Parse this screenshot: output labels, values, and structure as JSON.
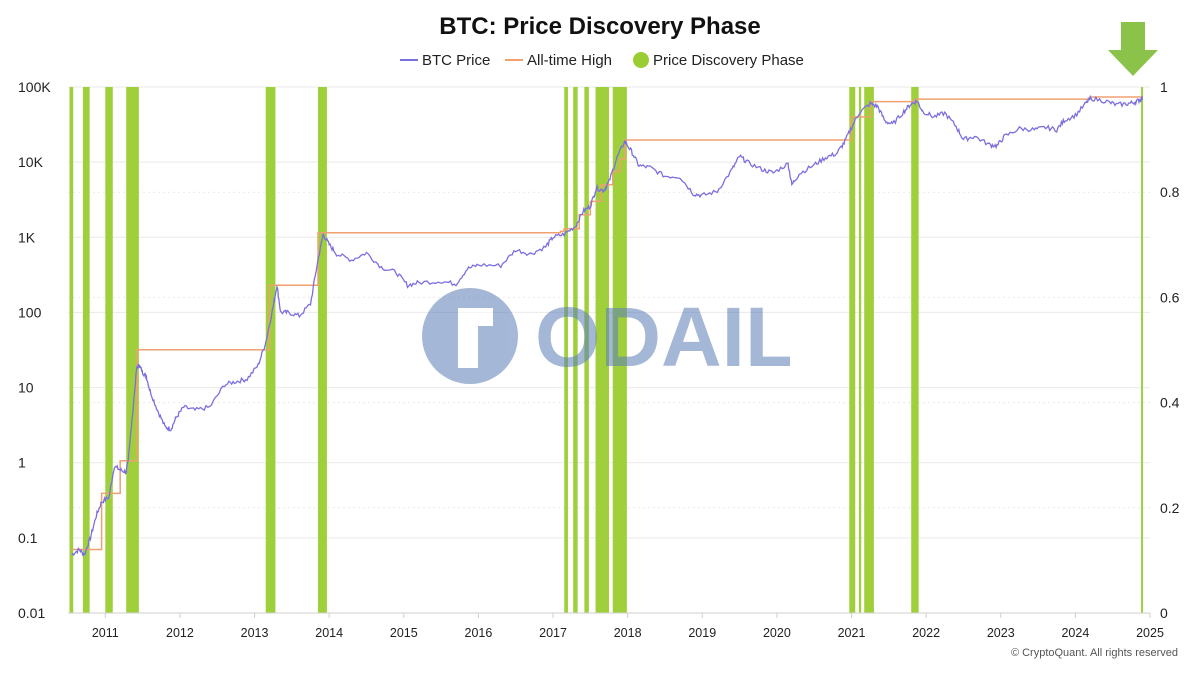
{
  "chart_data": {
    "type": "line",
    "title": "BTC: Price Discovery Phase",
    "legend": [
      "BTC Price",
      "All-time High",
      "Price Discovery Phase"
    ],
    "legend_position": "top-center",
    "y_left": {
      "scale": "log",
      "ylim": [
        0.01,
        100000
      ],
      "ticks": [
        {
          "value": 0.01,
          "label": "0.01"
        },
        {
          "value": 0.1,
          "label": "0.1"
        },
        {
          "value": 1,
          "label": "1"
        },
        {
          "value": 10,
          "label": "10"
        },
        {
          "value": 100,
          "label": "100"
        },
        {
          "value": 1000,
          "label": "1K"
        },
        {
          "value": 10000,
          "label": "10K"
        },
        {
          "value": 100000,
          "label": "100K"
        }
      ]
    },
    "y_right": {
      "ylim": [
        0,
        1
      ],
      "ticks": [
        {
          "value": 0,
          "label": "0"
        },
        {
          "value": 0.2,
          "label": "0.2"
        },
        {
          "value": 0.4,
          "label": "0.4"
        },
        {
          "value": 0.6,
          "label": "0.6"
        },
        {
          "value": 0.8,
          "label": "0.8"
        },
        {
          "value": 1,
          "label": "1"
        }
      ]
    },
    "x": {
      "xlim": [
        2010.5,
        2025.0
      ],
      "ticks": [
        "2011",
        "2012",
        "2013",
        "2014",
        "2015",
        "2016",
        "2017",
        "2018",
        "2019",
        "2020",
        "2021",
        "2022",
        "2023",
        "2024",
        "2025"
      ]
    },
    "grid": true,
    "series": [
      {
        "name": "BTC Price",
        "color": "#7B6FE0",
        "points": [
          [
            2010.55,
            0.06
          ],
          [
            2010.65,
            0.07
          ],
          [
            2010.72,
            0.06
          ],
          [
            2010.8,
            0.1
          ],
          [
            2010.88,
            0.2
          ],
          [
            2010.95,
            0.3
          ],
          [
            2011.05,
            0.35
          ],
          [
            2011.12,
            0.9
          ],
          [
            2011.2,
            0.8
          ],
          [
            2011.28,
            0.75
          ],
          [
            2011.3,
            1
          ],
          [
            2011.35,
            3
          ],
          [
            2011.42,
            18
          ],
          [
            2011.45,
            20
          ],
          [
            2011.5,
            16
          ],
          [
            2011.55,
            14
          ],
          [
            2011.6,
            9
          ],
          [
            2011.7,
            5
          ],
          [
            2011.8,
            3
          ],
          [
            2011.88,
            2.8
          ],
          [
            2011.95,
            4
          ],
          [
            2012.05,
            5.5
          ],
          [
            2012.2,
            5
          ],
          [
            2012.4,
            5.5
          ],
          [
            2012.6,
            11
          ],
          [
            2012.75,
            12
          ],
          [
            2012.9,
            13
          ],
          [
            2013.05,
            20
          ],
          [
            2013.15,
            40
          ],
          [
            2013.25,
            120
          ],
          [
            2013.3,
            230
          ],
          [
            2013.35,
            100
          ],
          [
            2013.45,
            100
          ],
          [
            2013.6,
            90
          ],
          [
            2013.75,
            130
          ],
          [
            2013.85,
            500
          ],
          [
            2013.92,
            1100
          ],
          [
            2014.0,
            800
          ],
          [
            2014.1,
            600
          ],
          [
            2014.3,
            500
          ],
          [
            2014.5,
            620
          ],
          [
            2014.7,
            400
          ],
          [
            2014.9,
            340
          ],
          [
            2015.05,
            230
          ],
          [
            2015.2,
            250
          ],
          [
            2015.5,
            260
          ],
          [
            2015.7,
            240
          ],
          [
            2015.85,
            380
          ],
          [
            2016.0,
            430
          ],
          [
            2016.3,
            420
          ],
          [
            2016.5,
            680
          ],
          [
            2016.7,
            600
          ],
          [
            2016.9,
            750
          ],
          [
            2017.0,
            1000
          ],
          [
            2017.15,
            1100
          ],
          [
            2017.3,
            1400
          ],
          [
            2017.4,
            2200
          ],
          [
            2017.5,
            2600
          ],
          [
            2017.58,
            4500
          ],
          [
            2017.68,
            4200
          ],
          [
            2017.75,
            5500
          ],
          [
            2017.85,
            11000
          ],
          [
            2017.96,
            19000
          ],
          [
            2018.05,
            14000
          ],
          [
            2018.15,
            9000
          ],
          [
            2018.3,
            8500
          ],
          [
            2018.5,
            6500
          ],
          [
            2018.7,
            6400
          ],
          [
            2018.88,
            3800
          ],
          [
            2019.0,
            3600
          ],
          [
            2019.2,
            4100
          ],
          [
            2019.4,
            8000
          ],
          [
            2019.5,
            12000
          ],
          [
            2019.6,
            10000
          ],
          [
            2019.8,
            8000
          ],
          [
            2019.95,
            7200
          ],
          [
            2020.15,
            9500
          ],
          [
            2020.2,
            5000
          ],
          [
            2020.3,
            7000
          ],
          [
            2020.5,
            9200
          ],
          [
            2020.65,
            11500
          ],
          [
            2020.8,
            13000
          ],
          [
            2020.9,
            18000
          ],
          [
            2021.0,
            29000
          ],
          [
            2021.1,
            45000
          ],
          [
            2021.25,
            60000
          ],
          [
            2021.35,
            55000
          ],
          [
            2021.45,
            35000
          ],
          [
            2021.55,
            32000
          ],
          [
            2021.7,
            47000
          ],
          [
            2021.8,
            60000
          ],
          [
            2021.88,
            65000
          ],
          [
            2021.95,
            48000
          ],
          [
            2022.1,
            40000
          ],
          [
            2022.25,
            45000
          ],
          [
            2022.4,
            30000
          ],
          [
            2022.5,
            20000
          ],
          [
            2022.65,
            22000
          ],
          [
            2022.85,
            17000
          ],
          [
            2022.95,
            16500
          ],
          [
            2023.05,
            22000
          ],
          [
            2023.25,
            28000
          ],
          [
            2023.45,
            27000
          ],
          [
            2023.6,
            29000
          ],
          [
            2023.75,
            27000
          ],
          [
            2023.85,
            36000
          ],
          [
            2024.0,
            42000
          ],
          [
            2024.15,
            62000
          ],
          [
            2024.2,
            71000
          ],
          [
            2024.4,
            65000
          ],
          [
            2024.55,
            58000
          ],
          [
            2024.7,
            60000
          ],
          [
            2024.8,
            63000
          ],
          [
            2024.87,
            68000
          ],
          [
            2024.9,
            72000
          ]
        ]
      },
      {
        "name": "All-time High",
        "color": "#F0A070",
        "steps": [
          [
            2010.55,
            0.07
          ],
          [
            2010.95,
            0.39
          ],
          [
            2011.2,
            1.06
          ],
          [
            2011.42,
            31.9
          ],
          [
            2013.2,
            230
          ],
          [
            2013.85,
            1150
          ],
          [
            2017.1,
            1200
          ],
          [
            2017.15,
            1300
          ],
          [
            2017.35,
            2000
          ],
          [
            2017.5,
            3000
          ],
          [
            2017.65,
            5000
          ],
          [
            2017.8,
            7500
          ],
          [
            2017.9,
            11000
          ],
          [
            2017.96,
            19700
          ],
          [
            2020.9,
            19700
          ],
          [
            2021.0,
            40000
          ],
          [
            2021.25,
            64000
          ],
          [
            2021.85,
            69000
          ],
          [
            2024.2,
            73700
          ],
          [
            2024.9,
            73700
          ]
        ]
      }
    ],
    "price_discovery_phase": {
      "color": "#9ACD32",
      "value": 1,
      "intervals": [
        [
          2010.52,
          2010.57
        ],
        [
          2010.7,
          2010.79
        ],
        [
          2011.0,
          2011.1
        ],
        [
          2011.28,
          2011.45
        ],
        [
          2013.15,
          2013.28
        ],
        [
          2013.85,
          2013.97
        ],
        [
          2017.15,
          2017.2
        ],
        [
          2017.27,
          2017.33
        ],
        [
          2017.42,
          2017.48
        ],
        [
          2017.57,
          2017.75
        ],
        [
          2017.8,
          2017.99
        ],
        [
          2020.97,
          2021.05
        ],
        [
          2021.1,
          2021.13
        ],
        [
          2021.17,
          2021.3
        ],
        [
          2021.8,
          2021.9
        ],
        [
          2024.88,
          2024.9
        ]
      ]
    }
  },
  "watermark": {
    "text": "ODAILY",
    "brand": "CryptoQuant"
  },
  "copyright": "© CryptoQuant. All rights reserved",
  "colors": {
    "price": "#7B6FE0",
    "ath": "#F0A070",
    "phase": "#9ACD32",
    "arrow": "#8BC34A"
  }
}
